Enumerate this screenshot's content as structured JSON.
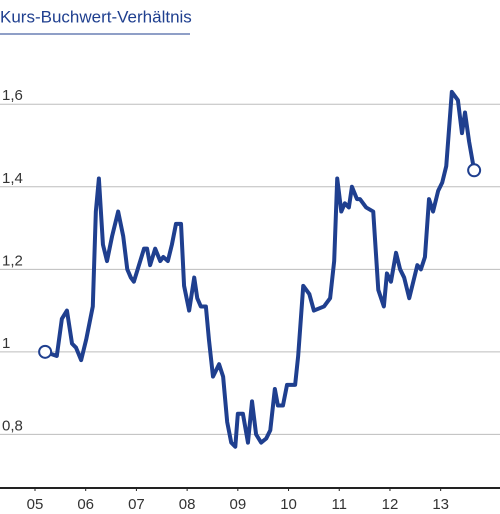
{
  "chart_data": {
    "type": "line",
    "title": "Kurs-Buchwert-Verhältnis",
    "color": "#1f3f8f",
    "xlim": [
      2004.31,
      2014.17
    ],
    "xticks": [
      {
        "value": 2005,
        "label": "05"
      },
      {
        "value": 2006,
        "label": "06"
      },
      {
        "value": 2007,
        "label": "07"
      },
      {
        "value": 2008,
        "label": "08"
      },
      {
        "value": 2009,
        "label": "09"
      },
      {
        "value": 2010,
        "label": "10"
      },
      {
        "value": 2011,
        "label": "11"
      },
      {
        "value": 2012,
        "label": "12"
      },
      {
        "value": 2013,
        "label": "13"
      }
    ],
    "ylim": [
      0.67,
      1.78
    ],
    "yticks": [
      {
        "value": 0.8,
        "label": "0,8"
      },
      1,
      {
        "value": 1.2,
        "label": "1,2"
      },
      {
        "value": 1.4,
        "label": "1,4"
      },
      {
        "value": 1.6,
        "label": "1,6"
      }
    ],
    "grid": true,
    "x": [
      2005.2,
      2005.43,
      2005.53,
      2005.63,
      2005.73,
      2005.81,
      2005.91,
      2006.01,
      2006.14,
      2006.2,
      2006.26,
      2006.34,
      2006.42,
      2006.52,
      2006.64,
      2006.74,
      2006.82,
      2006.89,
      2006.95,
      2007.05,
      2007.15,
      2007.21,
      2007.27,
      2007.37,
      2007.47,
      2007.53,
      2007.62,
      2007.7,
      2007.78,
      2007.88,
      2007.94,
      2008.04,
      2008.14,
      2008.2,
      2008.27,
      2008.37,
      2008.43,
      2008.51,
      2008.63,
      2008.71,
      2008.79,
      2008.87,
      2008.95,
      2009.0,
      2009.1,
      2009.2,
      2009.28,
      2009.36,
      2009.46,
      2009.56,
      2009.64,
      2009.73,
      2009.79,
      2009.89,
      2009.97,
      2010.13,
      2010.19,
      2010.29,
      2010.41,
      2010.5,
      2010.7,
      2010.82,
      2010.9,
      2010.96,
      2011.04,
      2011.11,
      2011.19,
      2011.25,
      2011.35,
      2011.41,
      2011.53,
      2011.67,
      2011.77,
      2011.88,
      2011.94,
      2012.02,
      2012.12,
      2012.2,
      2012.28,
      2012.38,
      2012.54,
      2012.61,
      2012.69,
      2012.77,
      2012.85,
      2012.95,
      2013.03,
      2013.11,
      2013.22,
      2013.34,
      2013.42,
      2013.48,
      2013.56,
      2013.66
    ],
    "values": [
      1.0,
      0.99,
      1.08,
      1.1,
      1.02,
      1.01,
      0.98,
      1.03,
      1.11,
      1.34,
      1.42,
      1.26,
      1.22,
      1.28,
      1.34,
      1.28,
      1.2,
      1.18,
      1.17,
      1.21,
      1.25,
      1.25,
      1.21,
      1.25,
      1.22,
      1.23,
      1.22,
      1.26,
      1.31,
      1.31,
      1.16,
      1.1,
      1.18,
      1.13,
      1.11,
      1.11,
      1.03,
      0.94,
      0.97,
      0.94,
      0.83,
      0.78,
      0.77,
      0.85,
      0.85,
      0.78,
      0.88,
      0.8,
      0.78,
      0.79,
      0.81,
      0.91,
      0.87,
      0.87,
      0.92,
      0.92,
      0.99,
      1.16,
      1.14,
      1.1,
      1.11,
      1.13,
      1.22,
      1.42,
      1.34,
      1.36,
      1.35,
      1.4,
      1.37,
      1.37,
      1.35,
      1.34,
      1.15,
      1.11,
      1.19,
      1.17,
      1.24,
      1.2,
      1.18,
      1.13,
      1.21,
      1.2,
      1.23,
      1.37,
      1.34,
      1.39,
      1.41,
      1.45,
      1.63,
      1.61,
      1.53,
      1.58,
      1.51,
      1.44
    ]
  }
}
